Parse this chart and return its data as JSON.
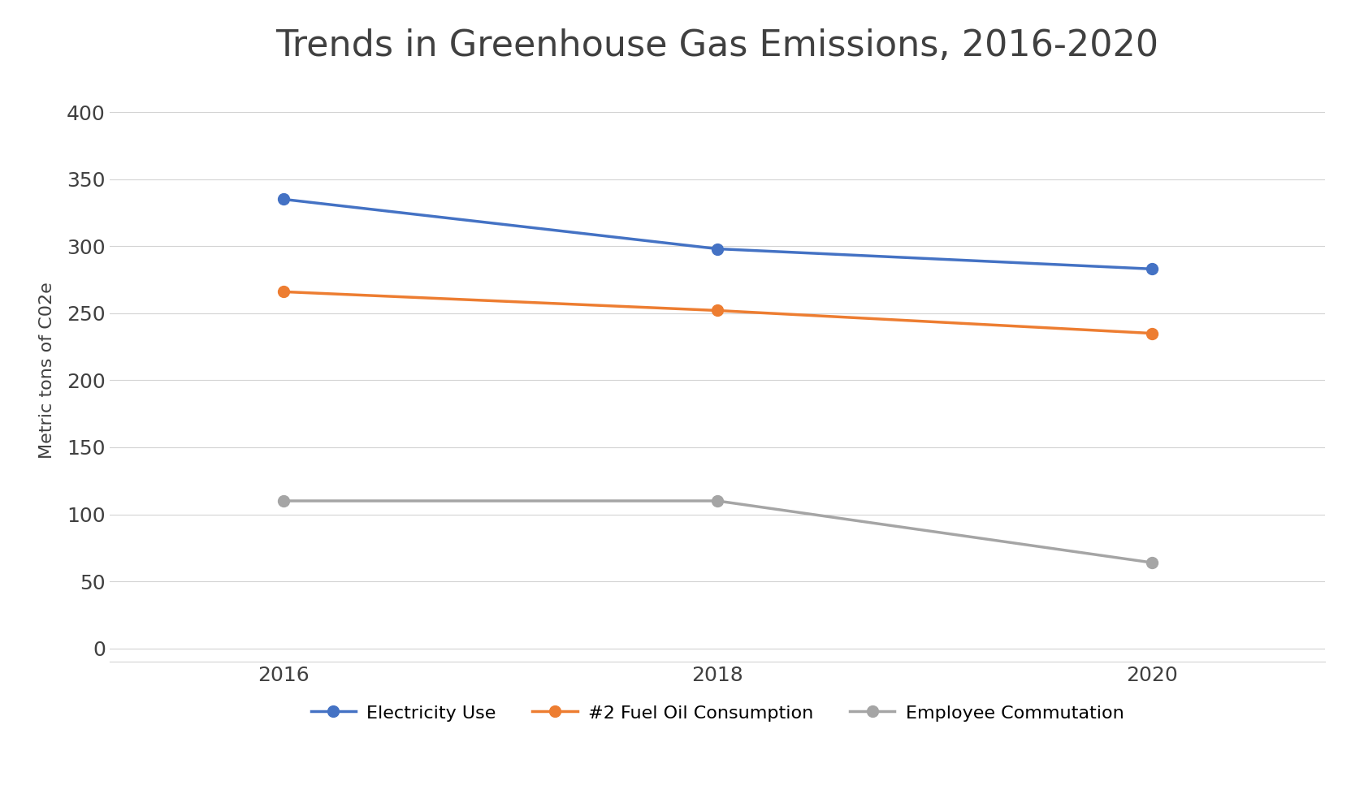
{
  "title": "Trends in Greenhouse Gas Emissions, 2016-2020",
  "xlabel": "",
  "ylabel": "Metric tons of C02e",
  "years": [
    2016,
    2018,
    2020
  ],
  "series": [
    {
      "name": "Electricity Use",
      "values": [
        335,
        298,
        283
      ],
      "color": "#4472C4",
      "marker": "o"
    },
    {
      "name": "#2 Fuel Oil Consumption",
      "values": [
        266,
        252,
        235
      ],
      "color": "#ED7D31",
      "marker": "o"
    },
    {
      "name": "Employee Commutation",
      "values": [
        110,
        110,
        64
      ],
      "color": "#A5A5A5",
      "marker": "o"
    }
  ],
  "ylim": [
    -10,
    425
  ],
  "yticks": [
    0,
    50,
    100,
    150,
    200,
    250,
    300,
    350,
    400
  ],
  "xticks": [
    2016,
    2018,
    2020
  ],
  "title_fontsize": 32,
  "axis_label_fontsize": 16,
  "tick_fontsize": 18,
  "legend_fontsize": 16,
  "line_width": 2.5,
  "marker_size": 10,
  "background_color": "#FFFFFF",
  "grid_color": "#D3D3D3",
  "title_color": "#404040",
  "tick_color": "#404040",
  "ylabel_color": "#404040"
}
